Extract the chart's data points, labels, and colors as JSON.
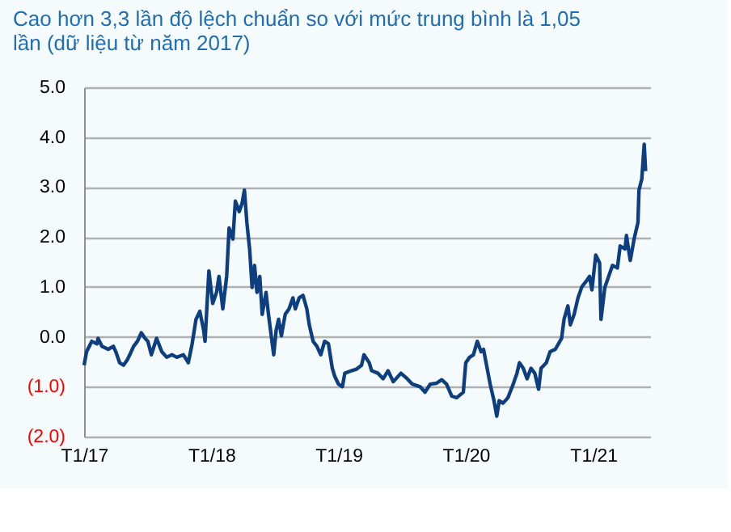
{
  "chart_data": {
    "type": "line",
    "title": "Cao hơn 3,3 lần độ lệch chuẩn so với mức trung bình là 1,05 lần (dữ liệu từ năm 2017)",
    "x": [
      "2017-01-01",
      "2017-01-08",
      "2017-01-16",
      "2017-01-23",
      "2017-02-07",
      "2017-02-10",
      "2017-02-21",
      "2017-03-11",
      "2017-03-26",
      "2017-04-02",
      "2017-04-13",
      "2017-04-24",
      "2017-05-05",
      "2017-05-12",
      "2017-05-23",
      "2017-06-03",
      "2017-06-14",
      "2017-06-25",
      "2017-07-03",
      "2017-07-13",
      "2017-07-28",
      "2017-08-12",
      "2017-08-26",
      "2017-09-10",
      "2017-09-24",
      "2017-10-13",
      "2017-10-27",
      "2017-11-07",
      "2017-11-18",
      "2017-11-29",
      "2017-12-10",
      "2017-12-14",
      "2017-12-25",
      "2018-01-05",
      "2018-01-16",
      "2018-01-23",
      "2018-02-03",
      "2018-02-14",
      "2018-02-21",
      "2018-03-04",
      "2018-03-11",
      "2018-03-22",
      "2018-03-30",
      "2018-04-06",
      "2018-04-13",
      "2018-04-21",
      "2018-04-28",
      "2018-05-05",
      "2018-05-12",
      "2018-05-20",
      "2018-05-27",
      "2018-06-07",
      "2018-06-14",
      "2018-06-29",
      "2018-07-06",
      "2018-07-13",
      "2018-07-21",
      "2018-08-01",
      "2018-08-12",
      "2018-08-23",
      "2018-08-30",
      "2018-09-10",
      "2018-09-21",
      "2018-10-02",
      "2018-10-09",
      "2018-10-20",
      "2018-10-31",
      "2018-11-11",
      "2018-11-22",
      "2018-12-03",
      "2018-12-14",
      "2018-12-21",
      "2019-01-01",
      "2019-01-12",
      "2019-01-19",
      "2019-02-07",
      "2019-02-21",
      "2019-03-08",
      "2019-03-15",
      "2019-03-30",
      "2019-04-06",
      "2019-04-24",
      "2019-05-09",
      "2019-05-23",
      "2019-06-07",
      "2019-06-29",
      "2019-07-17",
      "2019-08-01",
      "2019-08-23",
      "2019-09-06",
      "2019-09-21",
      "2019-10-09",
      "2019-10-24",
      "2019-11-07",
      "2019-11-22",
      "2019-12-06",
      "2019-12-25",
      "2020-01-01",
      "2020-01-12",
      "2020-01-23",
      "2020-02-03",
      "2020-02-14",
      "2020-02-21",
      "2020-03-11",
      "2020-03-22",
      "2020-03-30",
      "2020-04-06",
      "2020-04-17",
      "2020-05-01",
      "2020-05-16",
      "2020-05-27",
      "2020-06-03",
      "2020-06-14",
      "2020-06-25",
      "2020-07-06",
      "2020-07-17",
      "2020-07-28",
      "2020-08-04",
      "2020-08-19",
      "2020-08-30",
      "2020-09-14",
      "2020-10-02",
      "2020-10-09",
      "2020-10-20",
      "2020-10-27",
      "2020-11-07",
      "2020-11-18",
      "2020-11-29",
      "2020-12-10",
      "2020-12-21",
      "2020-12-28",
      "2021-01-08",
      "2021-01-19",
      "2021-01-23",
      "2021-02-03",
      "2021-02-14",
      "2021-02-25",
      "2021-03-11",
      "2021-03-19",
      "2021-04-02",
      "2021-04-06",
      "2021-04-17",
      "2021-04-28",
      "2021-05-09",
      "2021-05-12",
      "2021-05-20",
      "2021-05-27",
      "2021-05-31"
    ],
    "series": [
      {
        "color": "#0d3f80",
        "values": [
          -0.57,
          -0.3,
          -0.19,
          -0.09,
          -0.14,
          -0.03,
          -0.19,
          -0.25,
          -0.19,
          -0.3,
          -0.52,
          -0.57,
          -0.46,
          -0.36,
          -0.19,
          -0.09,
          0.08,
          -0.03,
          -0.09,
          -0.36,
          -0.03,
          -0.3,
          -0.41,
          -0.36,
          -0.41,
          -0.36,
          -0.52,
          -0.14,
          0.35,
          0.51,
          0.13,
          -0.09,
          1.32,
          0.67,
          0.89,
          1.21,
          0.56,
          1.21,
          2.18,
          1.96,
          2.72,
          2.51,
          2.67,
          2.94,
          2.29,
          1.75,
          0.99,
          1.43,
          0.89,
          1.21,
          0.45,
          0.89,
          0.45,
          -0.36,
          0.13,
          0.35,
          0.02,
          0.45,
          0.56,
          0.78,
          0.56,
          0.78,
          0.83,
          0.56,
          0.24,
          -0.09,
          -0.19,
          -0.36,
          -0.09,
          -0.14,
          -0.63,
          -0.79,
          -0.95,
          -1.0,
          -0.73,
          -0.68,
          -0.65,
          -0.57,
          -0.36,
          -0.52,
          -0.68,
          -0.73,
          -0.84,
          -0.68,
          -0.9,
          -0.73,
          -0.84,
          -0.95,
          -1.0,
          -1.11,
          -0.95,
          -0.93,
          -0.86,
          -0.95,
          -1.19,
          -1.22,
          -1.11,
          -0.52,
          -0.41,
          -0.36,
          -0.09,
          -0.3,
          -0.25,
          -0.95,
          -1.28,
          -1.59,
          -1.28,
          -1.33,
          -1.22,
          -0.95,
          -0.73,
          -0.52,
          -0.63,
          -0.84,
          -0.63,
          -0.73,
          -1.05,
          -0.63,
          -0.52,
          -0.3,
          -0.25,
          -0.03,
          0.35,
          0.62,
          0.24,
          0.45,
          0.78,
          1.0,
          1.1,
          1.21,
          0.94,
          1.64,
          1.48,
          0.35,
          0.99,
          1.21,
          1.43,
          1.38,
          1.82,
          1.76,
          2.03,
          1.53,
          1.96,
          2.29,
          2.94,
          3.16,
          3.86,
          3.32
        ]
      }
    ],
    "xlim": [
      "2017-01-01",
      "2021-06-13"
    ],
    "xticks": [
      {
        "value": "2017-01-01",
        "label": "T1/17"
      },
      {
        "value": "2018-01-01",
        "label": "T1/18"
      },
      {
        "value": "2019-01-01",
        "label": "T1/19"
      },
      {
        "value": "2020-01-01",
        "label": "T1/20"
      },
      {
        "value": "2021-01-01",
        "label": "T1/21"
      }
    ],
    "ylim": [
      -2,
      5
    ],
    "yticks": [
      {
        "value": -2,
        "label": "(2.0)"
      },
      {
        "value": -1,
        "label": "(1.0)"
      },
      {
        "value": 0,
        "label": "0.0"
      },
      {
        "value": 1,
        "label": "1.0"
      },
      {
        "value": 2,
        "label": "2.0"
      },
      {
        "value": 3,
        "label": "3.0"
      },
      {
        "value": 4,
        "label": "4.0"
      },
      {
        "value": 5,
        "label": "5.0"
      }
    ],
    "grid": "y",
    "legend": false,
    "marker": "none",
    "line_style": "solid"
  }
}
